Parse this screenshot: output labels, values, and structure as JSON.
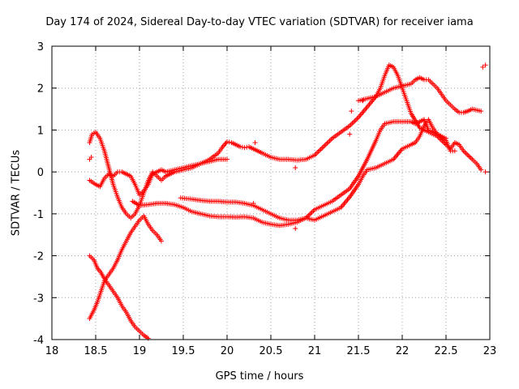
{
  "chart_data": {
    "type": "scatter",
    "title": "Day 174 of 2024, Sidereal Day-to-day VTEC variation (SDTVAR) for receiver iama",
    "xlabel": "GPS time / hours",
    "ylabel": "SDTVAR / TECUs",
    "xlim": [
      18,
      23
    ],
    "ylim": [
      -4,
      3
    ],
    "xticks": [
      "18",
      "18.5",
      "19",
      "19.5",
      "20",
      "20.5",
      "21",
      "21.5",
      "22",
      "22.5",
      "23"
    ],
    "yticks": [
      "3",
      "2",
      "1",
      "0",
      "-1",
      "-2",
      "-3",
      "-4"
    ],
    "grid": true,
    "marker": "+",
    "color": "#ff0000",
    "series": [
      {
        "points": [
          [
            18.43,
            0.7
          ],
          [
            18.46,
            0.9
          ],
          [
            18.5,
            0.95
          ],
          [
            18.55,
            0.8
          ],
          [
            18.6,
            0.5
          ],
          [
            18.65,
            0.1
          ],
          [
            18.7,
            -0.3
          ],
          [
            18.75,
            -0.6
          ],
          [
            18.8,
            -0.85
          ],
          [
            18.85,
            -1.0
          ],
          [
            18.9,
            -1.1
          ],
          [
            18.95,
            -1.0
          ],
          [
            19.0,
            -0.8
          ],
          [
            19.05,
            -0.5
          ],
          [
            19.1,
            -0.2
          ],
          [
            19.15,
            0.0
          ],
          [
            19.2,
            -0.1
          ],
          [
            19.25,
            -0.2
          ],
          [
            19.3,
            -0.1
          ],
          [
            19.35,
            -0.05
          ],
          [
            19.4,
            0.0
          ],
          [
            19.5,
            0.05
          ],
          [
            19.6,
            0.1
          ],
          [
            19.7,
            0.2
          ],
          [
            19.8,
            0.3
          ],
          [
            19.9,
            0.45
          ],
          [
            19.95,
            0.6
          ],
          [
            20.0,
            0.72
          ],
          [
            20.05,
            0.7
          ],
          [
            20.1,
            0.65
          ],
          [
            20.15,
            0.6
          ],
          [
            20.2,
            0.58
          ],
          [
            20.25,
            0.6
          ],
          [
            20.3,
            0.55
          ],
          [
            20.35,
            0.5
          ],
          [
            20.4,
            0.45
          ],
          [
            20.5,
            0.35
          ],
          [
            20.6,
            0.3
          ],
          [
            20.7,
            0.3
          ],
          [
            20.8,
            0.28
          ],
          [
            20.9,
            0.3
          ],
          [
            21.0,
            0.4
          ],
          [
            21.1,
            0.6
          ],
          [
            21.2,
            0.8
          ],
          [
            21.3,
            0.95
          ],
          [
            21.4,
            1.1
          ],
          [
            21.5,
            1.3
          ],
          [
            21.6,
            1.55
          ],
          [
            21.7,
            1.8
          ],
          [
            21.75,
            2.0
          ],
          [
            21.8,
            2.3
          ],
          [
            21.85,
            2.55
          ],
          [
            21.9,
            2.5
          ],
          [
            21.95,
            2.3
          ],
          [
            22.0,
            2.0
          ],
          [
            22.05,
            1.7
          ],
          [
            22.1,
            1.4
          ],
          [
            22.2,
            1.05
          ],
          [
            22.3,
            0.95
          ],
          [
            22.4,
            0.85
          ],
          [
            22.5,
            0.65
          ],
          [
            22.55,
            0.55
          ],
          [
            22.6,
            0.7
          ],
          [
            22.65,
            0.65
          ],
          [
            22.7,
            0.5
          ],
          [
            22.8,
            0.3
          ],
          [
            22.85,
            0.2
          ],
          [
            22.9,
            0.05
          ]
        ]
      },
      {
        "points": [
          [
            18.43,
            -0.2
          ],
          [
            18.5,
            -0.3
          ],
          [
            18.55,
            -0.35
          ],
          [
            18.6,
            -0.15
          ],
          [
            18.65,
            -0.05
          ],
          [
            18.7,
            -0.1
          ],
          [
            18.75,
            0.0
          ],
          [
            18.8,
            0.0
          ],
          [
            18.85,
            -0.05
          ],
          [
            18.9,
            -0.1
          ],
          [
            18.95,
            -0.3
          ],
          [
            19.0,
            -0.55
          ],
          [
            19.05,
            -0.45
          ],
          [
            19.1,
            -0.3
          ],
          [
            19.15,
            -0.05
          ],
          [
            19.2,
            0.0
          ],
          [
            19.25,
            0.05
          ],
          [
            19.3,
            0.0
          ],
          [
            19.4,
            0.05
          ],
          [
            19.5,
            0.1
          ],
          [
            19.6,
            0.15
          ],
          [
            19.7,
            0.2
          ],
          [
            19.8,
            0.25
          ],
          [
            19.9,
            0.3
          ],
          [
            20.0,
            0.3
          ]
        ]
      },
      {
        "points": [
          [
            18.92,
            -0.7
          ],
          [
            19.0,
            -0.8
          ],
          [
            19.1,
            -0.78
          ],
          [
            19.2,
            -0.75
          ],
          [
            19.3,
            -0.75
          ],
          [
            19.4,
            -0.78
          ],
          [
            19.5,
            -0.85
          ],
          [
            19.6,
            -0.95
          ],
          [
            19.7,
            -1.0
          ],
          [
            19.8,
            -1.05
          ],
          [
            19.9,
            -1.07
          ],
          [
            20.0,
            -1.07
          ],
          [
            20.1,
            -1.08
          ],
          [
            20.2,
            -1.07
          ],
          [
            20.3,
            -1.1
          ],
          [
            20.4,
            -1.2
          ],
          [
            20.5,
            -1.25
          ],
          [
            20.6,
            -1.28
          ],
          [
            20.7,
            -1.25
          ],
          [
            20.8,
            -1.2
          ],
          [
            20.9,
            -1.1
          ],
          [
            21.0,
            -0.9
          ],
          [
            21.1,
            -0.8
          ],
          [
            21.2,
            -0.7
          ],
          [
            21.3,
            -0.55
          ],
          [
            21.4,
            -0.4
          ],
          [
            21.5,
            -0.1
          ],
          [
            21.6,
            0.3
          ],
          [
            21.7,
            0.75
          ],
          [
            21.75,
            1.0
          ],
          [
            21.8,
            1.15
          ],
          [
            21.9,
            1.2
          ],
          [
            22.0,
            1.2
          ],
          [
            22.1,
            1.2
          ],
          [
            22.15,
            1.15
          ],
          [
            22.2,
            1.2
          ],
          [
            22.25,
            1.25
          ],
          [
            22.3,
            1.0
          ],
          [
            22.4,
            0.9
          ],
          [
            22.5,
            0.75
          ],
          [
            22.55,
            0.5
          ],
          [
            22.6,
            0.5
          ]
        ]
      },
      {
        "points": [
          [
            19.47,
            -0.62
          ],
          [
            19.6,
            -0.65
          ],
          [
            19.7,
            -0.68
          ],
          [
            19.8,
            -0.7
          ],
          [
            19.9,
            -0.7
          ],
          [
            20.0,
            -0.72
          ],
          [
            20.1,
            -0.72
          ],
          [
            20.2,
            -0.75
          ],
          [
            20.3,
            -0.8
          ],
          [
            20.4,
            -0.9
          ],
          [
            20.5,
            -1.0
          ],
          [
            20.6,
            -1.1
          ],
          [
            20.7,
            -1.15
          ],
          [
            20.8,
            -1.15
          ],
          [
            20.9,
            -1.1
          ],
          [
            21.0,
            -1.15
          ],
          [
            21.1,
            -1.05
          ],
          [
            21.2,
            -0.95
          ],
          [
            21.3,
            -0.85
          ],
          [
            21.4,
            -0.6
          ],
          [
            21.5,
            -0.3
          ],
          [
            21.55,
            -0.1
          ],
          [
            21.6,
            0.05
          ],
          [
            21.7,
            0.1
          ],
          [
            21.8,
            0.2
          ],
          [
            21.9,
            0.3
          ],
          [
            22.0,
            0.55
          ],
          [
            22.1,
            0.65
          ],
          [
            22.15,
            0.7
          ],
          [
            22.2,
            0.85
          ],
          [
            22.25,
            1.1
          ],
          [
            22.3,
            1.25
          ],
          [
            22.35,
            1.05
          ],
          [
            22.4,
            0.9
          ],
          [
            22.5,
            0.8
          ]
        ]
      },
      {
        "points": [
          [
            21.5,
            1.7
          ],
          [
            21.6,
            1.75
          ],
          [
            21.7,
            1.8
          ],
          [
            21.8,
            1.9
          ],
          [
            21.9,
            2.0
          ],
          [
            22.0,
            2.05
          ],
          [
            22.1,
            2.1
          ],
          [
            22.15,
            2.2
          ],
          [
            22.2,
            2.25
          ],
          [
            22.25,
            2.2
          ],
          [
            22.3,
            2.2
          ],
          [
            22.35,
            2.1
          ],
          [
            22.4,
            2.0
          ],
          [
            22.45,
            1.85
          ],
          [
            22.5,
            1.7
          ],
          [
            22.55,
            1.6
          ],
          [
            22.6,
            1.5
          ],
          [
            22.65,
            1.42
          ],
          [
            22.7,
            1.42
          ],
          [
            22.75,
            1.45
          ],
          [
            22.8,
            1.5
          ],
          [
            22.9,
            1.45
          ]
        ]
      },
      {
        "points": [
          [
            18.43,
            -3.5
          ],
          [
            18.48,
            -3.3
          ],
          [
            18.52,
            -3.1
          ],
          [
            18.56,
            -2.85
          ],
          [
            18.6,
            -2.6
          ],
          [
            18.65,
            -2.45
          ],
          [
            18.7,
            -2.3
          ],
          [
            18.75,
            -2.1
          ],
          [
            18.8,
            -1.85
          ],
          [
            18.85,
            -1.65
          ],
          [
            18.9,
            -1.45
          ],
          [
            18.95,
            -1.3
          ],
          [
            19.0,
            -1.15
          ],
          [
            19.05,
            -1.05
          ],
          [
            19.1,
            -1.25
          ],
          [
            19.15,
            -1.4
          ],
          [
            19.2,
            -1.5
          ],
          [
            19.25,
            -1.65
          ]
        ]
      },
      {
        "points": [
          [
            18.43,
            -2.0
          ],
          [
            18.48,
            -2.1
          ],
          [
            18.52,
            -2.3
          ],
          [
            18.56,
            -2.4
          ],
          [
            18.6,
            -2.55
          ],
          [
            18.65,
            -2.7
          ],
          [
            18.7,
            -2.85
          ],
          [
            18.75,
            -3.0
          ],
          [
            18.8,
            -3.2
          ],
          [
            18.85,
            -3.35
          ],
          [
            18.9,
            -3.55
          ],
          [
            18.95,
            -3.7
          ],
          [
            19.0,
            -3.8
          ],
          [
            19.05,
            -3.9
          ],
          [
            19.1,
            -3.97
          ]
        ]
      },
      {
        "points": [
          [
            18.45,
            0.35
          ],
          [
            18.43,
            0.3
          ],
          [
            20.32,
            0.7
          ],
          [
            20.78,
            0.1
          ],
          [
            20.78,
            -1.35
          ],
          [
            20.3,
            -0.75
          ],
          [
            21.4,
            0.9
          ],
          [
            21.42,
            1.45
          ],
          [
            21.55,
            1.7
          ],
          [
            22.92,
            2.5
          ],
          [
            22.95,
            2.55
          ],
          [
            22.95,
            0.0
          ]
        ]
      }
    ]
  }
}
